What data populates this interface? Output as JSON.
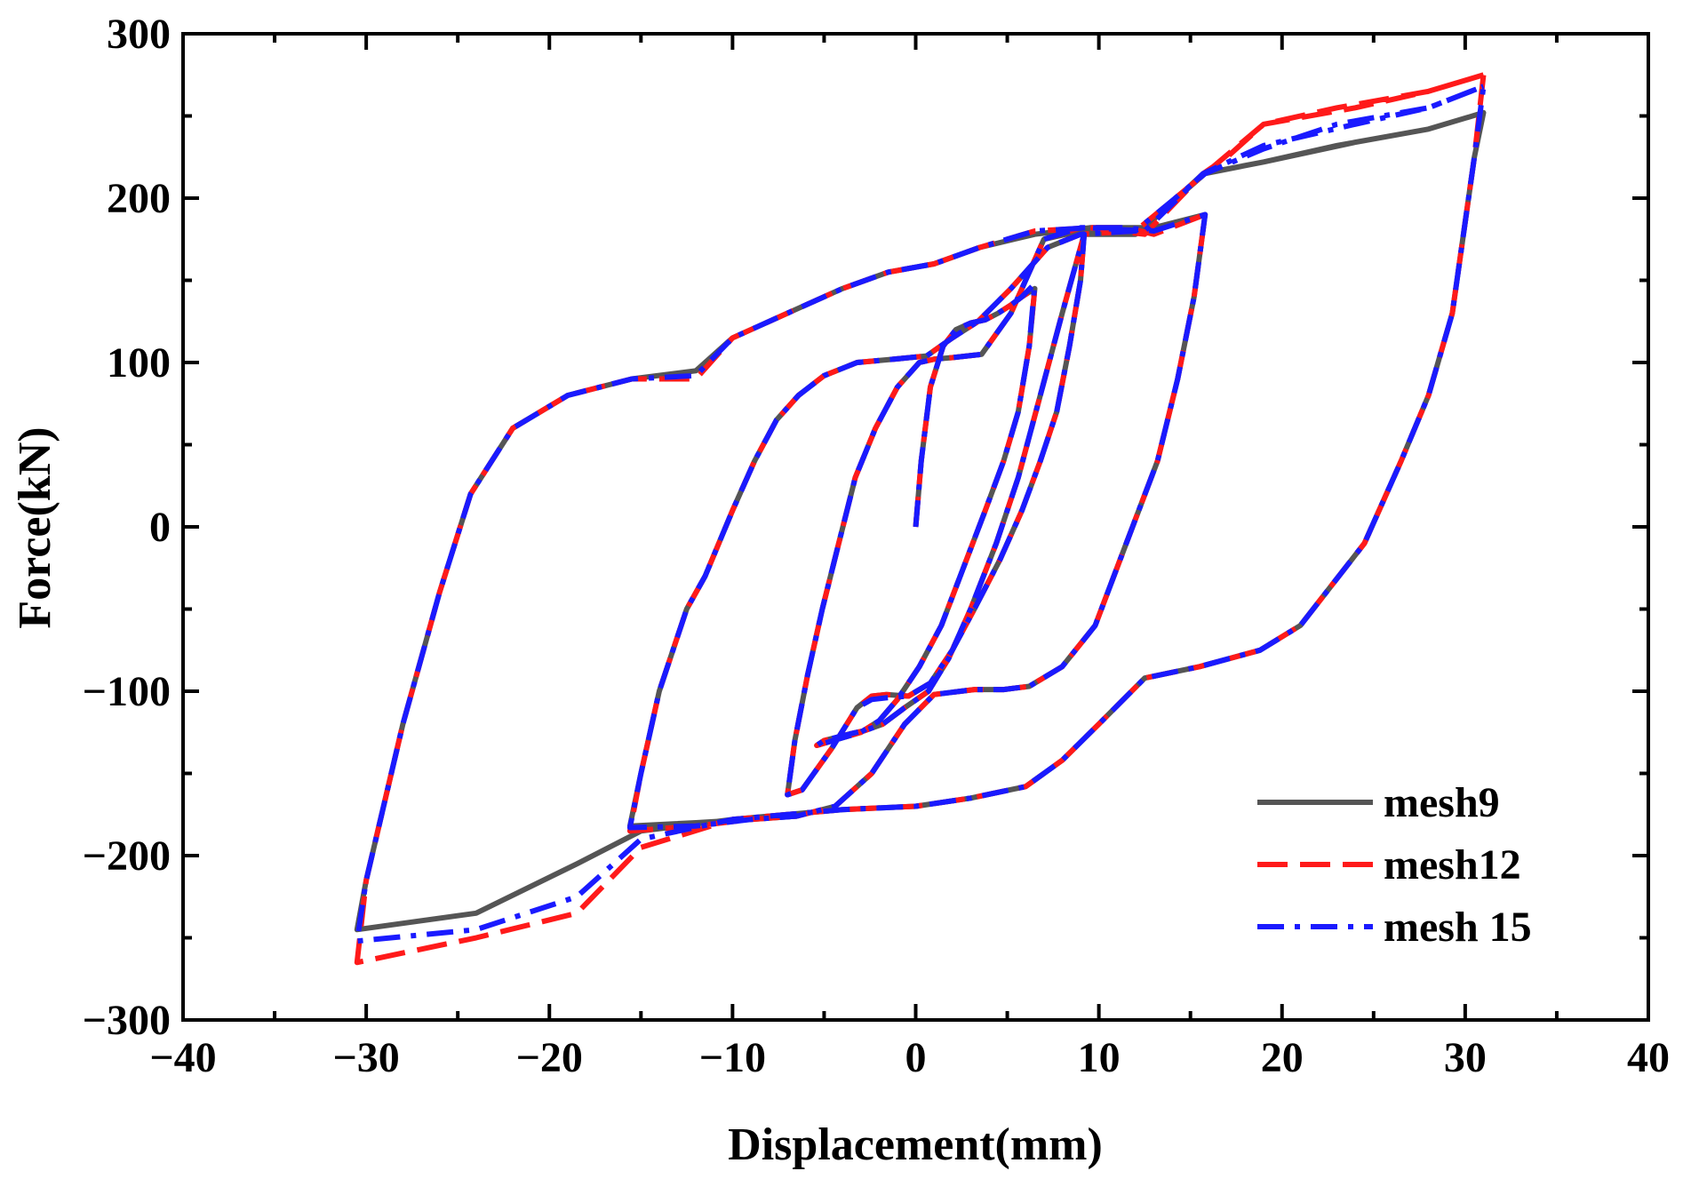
{
  "chart_data": {
    "type": "line",
    "title": "",
    "xlabel": "Displacement(mm)",
    "ylabel": "Force(kN)",
    "xlim": [
      -40,
      40
    ],
    "ylim": [
      -300,
      300
    ],
    "xticks": [
      -40,
      -30,
      -20,
      -10,
      0,
      10,
      20,
      30,
      40
    ],
    "yticks": [
      -300,
      -200,
      -100,
      0,
      100,
      200,
      300
    ],
    "xtick_labels": [
      "−40",
      "−30",
      "−20",
      "−10",
      "0",
      "10",
      "20",
      "30",
      "40"
    ],
    "ytick_labels": [
      "−300",
      "−200",
      "−100",
      "0",
      "100",
      "200",
      "300"
    ],
    "grid": false,
    "legend_position": "bottom-right",
    "series": [
      {
        "name": "mesh9",
        "color": "#555555",
        "dash": "solid",
        "x": [
          0,
          0.3,
          0.8,
          1.5,
          2.2,
          3,
          3.8,
          4.5,
          5.2,
          5.8,
          6.5,
          6.2,
          5.6,
          4.8,
          3.8,
          2.6,
          1.4,
          0.2,
          -1,
          -2,
          -3,
          -4.5,
          -5.4,
          -5,
          -4.3,
          -3.6,
          -2.8,
          -1.8,
          -0.6,
          0.7,
          1.8,
          3,
          4.4,
          5.6,
          6.8,
          8,
          9.2,
          9,
          8.4,
          7.7,
          6.8,
          5.8,
          4.6,
          3.2,
          2,
          0.8,
          -0.4,
          -1.6,
          -2.4,
          -3.2,
          -4.6,
          -6.2,
          -7,
          -6.6,
          -5.9,
          -5.1,
          -4.2,
          -3.3,
          -2.2,
          -1,
          0.2,
          1,
          2,
          3.6,
          5.2,
          7,
          9,
          11.5,
          13,
          15.8,
          15.2,
          14.3,
          13.2,
          11.5,
          9.8,
          8,
          6.2,
          4.8,
          3.2,
          1,
          -0.6,
          -2.4,
          -4.4,
          -6.5,
          -9,
          -12,
          -15.6,
          -15,
          -14,
          -12.5,
          -11.5,
          -10,
          -8.8,
          -7.6,
          -6.4,
          -5,
          -3.2,
          -1.2,
          0.6,
          2,
          3.4,
          5.2,
          7.2,
          9,
          12,
          15.8,
          19,
          23,
          28,
          31,
          30.5,
          29.3,
          28,
          26.5,
          24.5,
          21,
          18.8,
          15.5,
          12.5,
          10,
          8,
          6,
          3,
          0,
          -4,
          -10,
          -15,
          -18.5,
          -24,
          -30.5,
          -30,
          -28,
          -26,
          -24.3,
          -22,
          -19,
          -15.5,
          -12,
          -10,
          -7,
          -4,
          -1.5,
          1,
          3.5,
          6.5,
          9.5,
          12.5,
          15.7,
          19,
          24,
          28,
          31
        ],
        "y": [
          0,
          40,
          85,
          110,
          120,
          124,
          126,
          130,
          135,
          140,
          145,
          110,
          70,
          40,
          10,
          -25,
          -60,
          -85,
          -105,
          -118,
          -125,
          -130,
          -133,
          -130,
          -128,
          -126,
          -124,
          -120,
          -110,
          -100,
          -80,
          -50,
          -10,
          30,
          80,
          130,
          178,
          150,
          110,
          70,
          40,
          10,
          -20,
          -50,
          -75,
          -95,
          -103,
          -102,
          -103,
          -110,
          -135,
          -160,
          -163,
          -130,
          -90,
          -50,
          -10,
          30,
          60,
          85,
          100,
          102,
          103,
          105,
          130,
          175,
          180,
          182,
          182,
          190,
          140,
          90,
          40,
          -10,
          -60,
          -85,
          -97,
          -99,
          -99,
          -102,
          -120,
          -150,
          -170,
          -176,
          -178,
          -180,
          -182,
          -150,
          -100,
          -50,
          -30,
          10,
          40,
          65,
          80,
          92,
          100,
          102,
          104,
          115,
          125,
          145,
          170,
          178,
          178,
          215,
          222,
          232,
          242,
          252,
          225,
          130,
          80,
          40,
          -10,
          -60,
          -75,
          -85,
          -92,
          -120,
          -142,
          -158,
          -165,
          -170,
          -172,
          -178,
          -185,
          -205,
          -235,
          -245,
          -215,
          -120,
          -40,
          20,
          60,
          80,
          90,
          95,
          115,
          130,
          145,
          155,
          160,
          170,
          178,
          182,
          182,
          215,
          222,
          234,
          242,
          252
        ]
      },
      {
        "name": "mesh12",
        "color": "#ff1a1a",
        "dash": "long-dash",
        "x": [
          0,
          0.3,
          0.8,
          1.5,
          2.2,
          3,
          3.8,
          4.5,
          5.2,
          5.8,
          6.5,
          6.2,
          5.6,
          4.8,
          3.8,
          2.6,
          1.4,
          0.2,
          -1,
          -2,
          -3,
          -4.5,
          -5.4,
          -5,
          -4.3,
          -3.6,
          -2.8,
          -1.8,
          -0.6,
          0.7,
          1.8,
          3,
          4.4,
          5.6,
          6.8,
          8,
          9.2,
          9,
          8.4,
          7.7,
          6.8,
          5.8,
          4.6,
          3.2,
          2,
          0.8,
          -0.4,
          -1.6,
          -2.4,
          -3.2,
          -4.6,
          -6.2,
          -7,
          -6.6,
          -5.9,
          -5.1,
          -4.2,
          -3.3,
          -2.2,
          -1,
          0.2,
          1,
          2,
          3.6,
          5.2,
          7,
          9,
          11.5,
          13,
          15.8,
          15.2,
          14.3,
          13.2,
          11.5,
          9.8,
          8,
          6.2,
          4.8,
          3.2,
          1,
          -0.6,
          -2.4,
          -4.4,
          -6.5,
          -9,
          -12,
          -15.6,
          -15,
          -14,
          -12.5,
          -11.5,
          -10,
          -8.8,
          -7.6,
          -6.4,
          -5,
          -3.2,
          -1.2,
          0.6,
          2,
          3.4,
          5.2,
          7.2,
          9,
          12,
          15.8,
          19,
          23,
          28,
          31,
          30.5,
          29.3,
          28,
          26.5,
          24.5,
          21,
          18.8,
          15.5,
          12.5,
          10,
          8,
          6,
          3,
          0,
          -4,
          -10,
          -15,
          -18.5,
          -24,
          -30.5,
          -30,
          -28,
          -26,
          -24.3,
          -22,
          -19,
          -15.5,
          -12,
          -10,
          -7,
          -4,
          -1.5,
          1,
          3.5,
          6.5,
          9.5,
          12.5,
          15.7,
          17,
          19,
          24,
          28,
          31
        ],
        "y": [
          0,
          40,
          85,
          110,
          120,
          124,
          126,
          130,
          135,
          140,
          145,
          110,
          70,
          40,
          10,
          -25,
          -60,
          -85,
          -105,
          -118,
          -125,
          -130,
          -133,
          -130,
          -128,
          -126,
          -124,
          -120,
          -110,
          -100,
          -80,
          -50,
          -10,
          30,
          80,
          130,
          178,
          150,
          110,
          70,
          40,
          10,
          -20,
          -50,
          -75,
          -95,
          -103,
          -102,
          -103,
          -110,
          -135,
          -160,
          -163,
          -130,
          -90,
          -50,
          -10,
          30,
          60,
          85,
          100,
          102,
          103,
          105,
          130,
          175,
          182,
          182,
          178,
          190,
          140,
          90,
          40,
          -10,
          -60,
          -85,
          -97,
          -99,
          -99,
          -102,
          -120,
          -150,
          -170,
          -176,
          -178,
          -182,
          -185,
          -150,
          -100,
          -50,
          -30,
          10,
          40,
          65,
          80,
          92,
          100,
          102,
          104,
          115,
          125,
          145,
          170,
          178,
          180,
          215,
          245,
          255,
          265,
          275,
          225,
          130,
          80,
          40,
          -10,
          -60,
          -75,
          -85,
          -92,
          -120,
          -142,
          -158,
          -165,
          -170,
          -172,
          -178,
          -195,
          -235,
          -250,
          -265,
          -215,
          -120,
          -40,
          20,
          60,
          80,
          90,
          90,
          115,
          130,
          145,
          155,
          160,
          170,
          180,
          182,
          178,
          215,
          225,
          245,
          255,
          265,
          275
        ]
      },
      {
        "name": "mesh 15",
        "color": "#1a1aff",
        "dash": "dash-dot",
        "x": [
          0,
          0.3,
          0.8,
          1.5,
          2.2,
          3,
          3.8,
          4.5,
          5.2,
          5.8,
          6.5,
          6.2,
          5.6,
          4.8,
          3.8,
          2.6,
          1.4,
          0.2,
          -1,
          -2,
          -3,
          -4.5,
          -5.4,
          -5,
          -4.3,
          -3.6,
          -2.8,
          -1.8,
          -0.6,
          0.7,
          1.8,
          3,
          4.4,
          5.6,
          6.8,
          8,
          9.2,
          9,
          8.4,
          7.7,
          6.8,
          5.8,
          4.6,
          3.2,
          2,
          0.8,
          -0.4,
          -1.6,
          -2.4,
          -3.2,
          -4.6,
          -6.2,
          -7,
          -6.6,
          -5.9,
          -5.1,
          -4.2,
          -3.3,
          -2.2,
          -1,
          0.2,
          1,
          2,
          3.6,
          5.2,
          7,
          9,
          11.5,
          13,
          15.8,
          15.2,
          14.3,
          13.2,
          11.5,
          9.8,
          8,
          6.2,
          4.8,
          3.2,
          1,
          -0.6,
          -2.4,
          -4.4,
          -6.5,
          -9,
          -12,
          -15.6,
          -15,
          -14,
          -12.5,
          -11.5,
          -10,
          -8.8,
          -7.6,
          -6.4,
          -5,
          -3.2,
          -1.2,
          0.6,
          2,
          3.4,
          5.2,
          7.2,
          9,
          12,
          15.8,
          19,
          23,
          28,
          31,
          30.5,
          29.3,
          28,
          26.5,
          24.5,
          21,
          18.8,
          15.5,
          12.5,
          10,
          8,
          6,
          3,
          0,
          -4,
          -10,
          -15,
          -18.5,
          -24,
          -30.5,
          -30,
          -28,
          -26,
          -24.3,
          -22,
          -19,
          -15.5,
          -12,
          -10,
          -7,
          -4,
          -1.5,
          1,
          3.5,
          6.5,
          9.5,
          12.5,
          15.7,
          19,
          24,
          28,
          31
        ],
        "y": [
          0,
          40,
          85,
          110,
          120,
          124,
          126,
          130,
          135,
          140,
          148,
          110,
          70,
          40,
          10,
          -25,
          -60,
          -85,
          -105,
          -118,
          -125,
          -130,
          -133,
          -130,
          -128,
          -126,
          -124,
          -120,
          -110,
          -100,
          -80,
          -50,
          -10,
          30,
          80,
          130,
          178,
          150,
          110,
          70,
          40,
          10,
          -20,
          -50,
          -75,
          -95,
          -103,
          -104,
          -105,
          -110,
          -135,
          -160,
          -163,
          -130,
          -90,
          -50,
          -10,
          30,
          60,
          85,
          100,
          102,
          103,
          105,
          130,
          175,
          182,
          182,
          180,
          190,
          140,
          90,
          40,
          -10,
          -60,
          -85,
          -97,
          -99,
          -99,
          -102,
          -120,
          -150,
          -170,
          -176,
          -178,
          -182,
          -183,
          -150,
          -100,
          -50,
          -30,
          10,
          40,
          65,
          80,
          92,
          100,
          102,
          104,
          115,
          125,
          145,
          170,
          178,
          180,
          215,
          230,
          245,
          255,
          268,
          225,
          130,
          80,
          40,
          -10,
          -60,
          -75,
          -85,
          -92,
          -120,
          -142,
          -158,
          -165,
          -170,
          -172,
          -178,
          -190,
          -225,
          -245,
          -252,
          -215,
          -120,
          -40,
          20,
          60,
          80,
          90,
          92,
          115,
          130,
          145,
          155,
          160,
          170,
          180,
          182,
          180,
          215,
          232,
          245,
          255,
          268
        ]
      }
    ]
  }
}
